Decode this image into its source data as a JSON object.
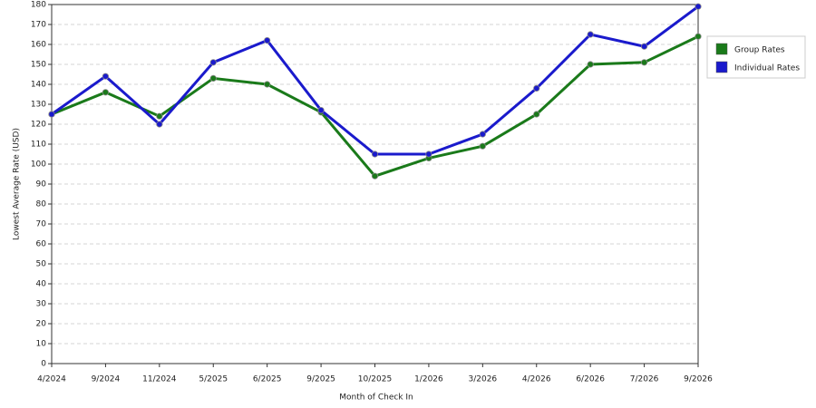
{
  "chart_data": {
    "type": "line",
    "x_label": "Month of Check In",
    "y_label": "Lowest Average Rate (USD)",
    "categories": [
      "4/2024",
      "9/2024",
      "11/2024",
      "5/2025",
      "6/2025",
      "9/2025",
      "10/2025",
      "1/2026",
      "3/2026",
      "4/2026",
      "6/2026",
      "7/2026",
      "9/2026"
    ],
    "series": [
      {
        "name": "Group Rates",
        "color": "#1a7a1a",
        "values": [
          125,
          136,
          124,
          143,
          140,
          126,
          94,
          103,
          109,
          125,
          150,
          151,
          164
        ]
      },
      {
        "name": "Individual Rates",
        "color": "#1a1acc",
        "values": [
          125,
          144,
          120,
          151,
          162,
          127,
          105,
          105,
          115,
          138,
          165,
          159,
          179
        ]
      }
    ],
    "ylim": [
      0,
      180
    ],
    "yticks": [
      0,
      10,
      20,
      30,
      40,
      50,
      60,
      70,
      80,
      90,
      100,
      110,
      120,
      130,
      140,
      150,
      160,
      170,
      180
    ],
    "grid": true,
    "legend": "right"
  }
}
